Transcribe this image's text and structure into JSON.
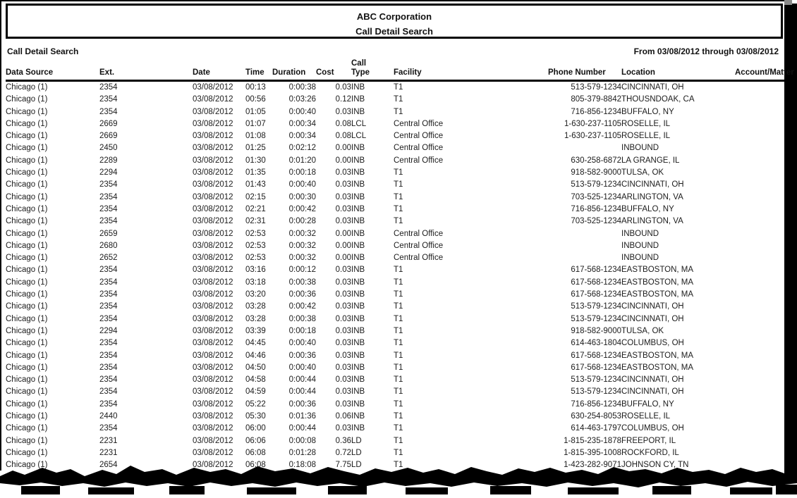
{
  "report": {
    "header_title_line1": "ABC Corporation",
    "header_title_line2": "Call Detail Search",
    "section_label": "Call Detail Search",
    "date_range": "From 03/08/2012 through 03/08/2012"
  },
  "table": {
    "columns": [
      {
        "key": "data_source",
        "label": "Data Source"
      },
      {
        "key": "ext",
        "label": "Ext."
      },
      {
        "key": "date",
        "label": "Date"
      },
      {
        "key": "time",
        "label": "Time"
      },
      {
        "key": "duration",
        "label": "Duration"
      },
      {
        "key": "cost",
        "label": "Cost"
      },
      {
        "key": "call_type",
        "label": "Call\nType"
      },
      {
        "key": "facility",
        "label": "Facility"
      },
      {
        "key": "phone",
        "label": "Phone Number"
      },
      {
        "key": "location",
        "label": "Location"
      },
      {
        "key": "account",
        "label": "Account/Matter"
      }
    ],
    "rows": [
      [
        "Chicago (1)",
        "2354",
        "03/08/2012",
        "00:13",
        "0:00:38",
        "0.03",
        "INB",
        "T1",
        "513-579-1234",
        "CINCINNATI, OH",
        ""
      ],
      [
        "Chicago (1)",
        "2354",
        "03/08/2012",
        "00:56",
        "0:03:26",
        "0.12",
        "INB",
        "T1",
        "805-379-8842",
        "THOUSNDOAK, CA",
        ""
      ],
      [
        "Chicago (1)",
        "2354",
        "03/08/2012",
        "01:05",
        "0:00:40",
        "0.03",
        "INB",
        "T1",
        "716-856-1234",
        "BUFFALO, NY",
        ""
      ],
      [
        "Chicago (1)",
        "2669",
        "03/08/2012",
        "01:07",
        "0:00:34",
        "0.08",
        "LCL",
        "Central Office",
        "1-630-237-1105",
        "ROSELLE, IL",
        ""
      ],
      [
        "Chicago (1)",
        "2669",
        "03/08/2012",
        "01:08",
        "0:00:34",
        "0.08",
        "LCL",
        "Central Office",
        "1-630-237-1105",
        "ROSELLE, IL",
        ""
      ],
      [
        "Chicago (1)",
        "2450",
        "03/08/2012",
        "01:25",
        "0:02:12",
        "0.00",
        "INB",
        "Central Office",
        "",
        "INBOUND",
        ""
      ],
      [
        "Chicago (1)",
        "2289",
        "03/08/2012",
        "01:30",
        "0:01:20",
        "0.00",
        "INB",
        "Central Office",
        "630-258-6872",
        "LA GRANGE, IL",
        ""
      ],
      [
        "Chicago (1)",
        "2294",
        "03/08/2012",
        "01:35",
        "0:00:18",
        "0.03",
        "INB",
        "T1",
        "918-582-9000",
        "TULSA, OK",
        ""
      ],
      [
        "Chicago (1)",
        "2354",
        "03/08/2012",
        "01:43",
        "0:00:40",
        "0.03",
        "INB",
        "T1",
        "513-579-1234",
        "CINCINNATI, OH",
        ""
      ],
      [
        "Chicago (1)",
        "2354",
        "03/08/2012",
        "02:15",
        "0:00:30",
        "0.03",
        "INB",
        "T1",
        "703-525-1234",
        "ARLINGTON, VA",
        ""
      ],
      [
        "Chicago (1)",
        "2354",
        "03/08/2012",
        "02:21",
        "0:00:42",
        "0.03",
        "INB",
        "T1",
        "716-856-1234",
        "BUFFALO, NY",
        ""
      ],
      [
        "Chicago (1)",
        "2354",
        "03/08/2012",
        "02:31",
        "0:00:28",
        "0.03",
        "INB",
        "T1",
        "703-525-1234",
        "ARLINGTON, VA",
        ""
      ],
      [
        "Chicago (1)",
        "2659",
        "03/08/2012",
        "02:53",
        "0:00:32",
        "0.00",
        "INB",
        "Central Office",
        "",
        "INBOUND",
        ""
      ],
      [
        "Chicago (1)",
        "2680",
        "03/08/2012",
        "02:53",
        "0:00:32",
        "0.00",
        "INB",
        "Central Office",
        "",
        "INBOUND",
        ""
      ],
      [
        "Chicago (1)",
        "2652",
        "03/08/2012",
        "02:53",
        "0:00:32",
        "0.00",
        "INB",
        "Central Office",
        "",
        "INBOUND",
        ""
      ],
      [
        "Chicago (1)",
        "2354",
        "03/08/2012",
        "03:16",
        "0:00:12",
        "0.03",
        "INB",
        "T1",
        "617-568-1234",
        "EASTBOSTON, MA",
        ""
      ],
      [
        "Chicago (1)",
        "2354",
        "03/08/2012",
        "03:18",
        "0:00:38",
        "0.03",
        "INB",
        "T1",
        "617-568-1234",
        "EASTBOSTON, MA",
        ""
      ],
      [
        "Chicago (1)",
        "2354",
        "03/08/2012",
        "03:20",
        "0:00:36",
        "0.03",
        "INB",
        "T1",
        "617-568-1234",
        "EASTBOSTON, MA",
        ""
      ],
      [
        "Chicago (1)",
        "2354",
        "03/08/2012",
        "03:28",
        "0:00:42",
        "0.03",
        "INB",
        "T1",
        "513-579-1234",
        "CINCINNATI, OH",
        ""
      ],
      [
        "Chicago (1)",
        "2354",
        "03/08/2012",
        "03:28",
        "0:00:38",
        "0.03",
        "INB",
        "T1",
        "513-579-1234",
        "CINCINNATI, OH",
        ""
      ],
      [
        "Chicago (1)",
        "2294",
        "03/08/2012",
        "03:39",
        "0:00:18",
        "0.03",
        "INB",
        "T1",
        "918-582-9000",
        "TULSA, OK",
        ""
      ],
      [
        "Chicago (1)",
        "2354",
        "03/08/2012",
        "04:45",
        "0:00:40",
        "0.03",
        "INB",
        "T1",
        "614-463-1804",
        "COLUMBUS, OH",
        ""
      ],
      [
        "Chicago (1)",
        "2354",
        "03/08/2012",
        "04:46",
        "0:00:36",
        "0.03",
        "INB",
        "T1",
        "617-568-1234",
        "EASTBOSTON, MA",
        ""
      ],
      [
        "Chicago (1)",
        "2354",
        "03/08/2012",
        "04:50",
        "0:00:40",
        "0.03",
        "INB",
        "T1",
        "617-568-1234",
        "EASTBOSTON, MA",
        ""
      ],
      [
        "Chicago (1)",
        "2354",
        "03/08/2012",
        "04:58",
        "0:00:44",
        "0.03",
        "INB",
        "T1",
        "513-579-1234",
        "CINCINNATI, OH",
        ""
      ],
      [
        "Chicago (1)",
        "2354",
        "03/08/2012",
        "04:59",
        "0:00:44",
        "0.03",
        "INB",
        "T1",
        "513-579-1234",
        "CINCINNATI, OH",
        ""
      ],
      [
        "Chicago (1)",
        "2354",
        "03/08/2012",
        "05:22",
        "0:00:36",
        "0.03",
        "INB",
        "T1",
        "716-856-1234",
        "BUFFALO, NY",
        ""
      ],
      [
        "Chicago (1)",
        "2440",
        "03/08/2012",
        "05:30",
        "0:01:36",
        "0.06",
        "INB",
        "T1",
        "630-254-8053",
        "ROSELLE, IL",
        ""
      ],
      [
        "Chicago (1)",
        "2354",
        "03/08/2012",
        "06:00",
        "0:00:44",
        "0.03",
        "INB",
        "T1",
        "614-463-1797",
        "COLUMBUS, OH",
        ""
      ],
      [
        "Chicago (1)",
        "2231",
        "03/08/2012",
        "06:06",
        "0:00:08",
        "0.36",
        "LD",
        "T1",
        "1-815-235-1878",
        "FREEPORT, IL",
        ""
      ],
      [
        "Chicago (1)",
        "2231",
        "03/08/2012",
        "06:08",
        "0:01:28",
        "0.72",
        "LD",
        "T1",
        "1-815-395-1008",
        "ROCKFORD, IL",
        ""
      ],
      [
        "Chicago (1)",
        "2654",
        "03/08/2012",
        "06:08",
        "0:18:08",
        "7.75",
        "LD",
        "T1",
        "1-423-282-9071",
        "JOHNSON CY, TN",
        ""
      ]
    ]
  }
}
